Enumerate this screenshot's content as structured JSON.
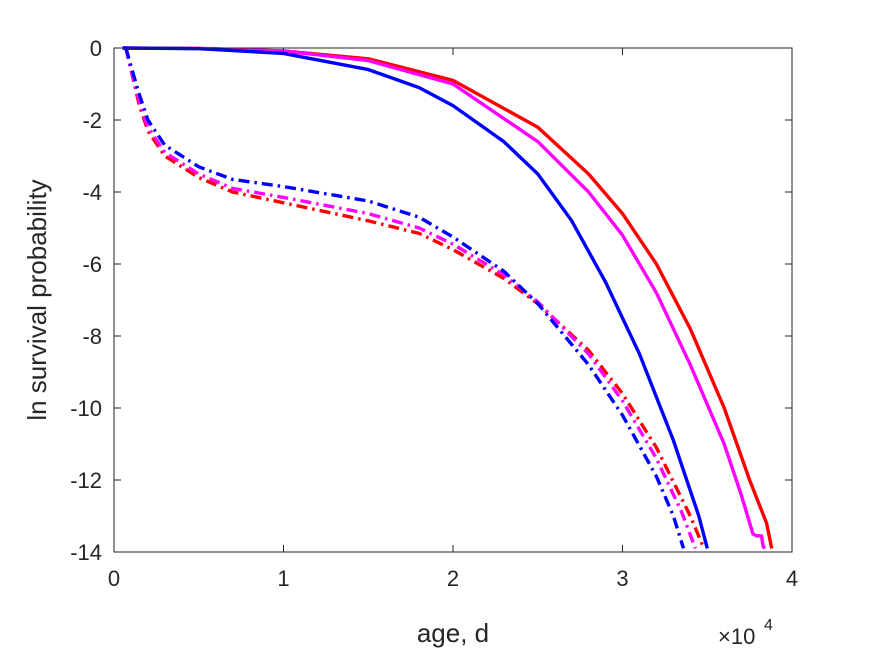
{
  "chart_data": {
    "type": "line",
    "title": "",
    "xlabel": "age, d",
    "ylabel": "ln survival probability",
    "x_exponent_label": {
      "base": "×10",
      "power": "4"
    },
    "xlim": [
      0,
      4
    ],
    "ylim": [
      -14,
      0
    ],
    "x_ticks": [
      "0",
      "1",
      "2",
      "3",
      "4"
    ],
    "y_ticks": [
      "0",
      "-2",
      "-4",
      "-6",
      "-8",
      "-10",
      "-12",
      "-14"
    ],
    "grid": false,
    "legend": "none",
    "series": [
      {
        "color": "#ff0000",
        "dash": "solid",
        "x": [
          0.05,
          0.5,
          1.0,
          1.5,
          2.0,
          2.5,
          2.8,
          3.0,
          3.2,
          3.4,
          3.6,
          3.75,
          3.85,
          3.88
        ],
        "y": [
          0,
          -0.01,
          -0.08,
          -0.3,
          -0.9,
          -2.2,
          -3.5,
          -4.6,
          -6.0,
          -7.8,
          -10.0,
          -12.0,
          -13.2,
          -13.9
        ]
      },
      {
        "color": "#ff00ff",
        "dash": "solid",
        "x": [
          0.05,
          0.5,
          1.0,
          1.5,
          2.0,
          2.5,
          2.8,
          3.0,
          3.2,
          3.4,
          3.6,
          3.7,
          3.77,
          3.79,
          3.82,
          3.83,
          3.84
        ],
        "y": [
          0,
          -0.01,
          -0.08,
          -0.35,
          -1.0,
          -2.6,
          -4.0,
          -5.2,
          -6.8,
          -8.8,
          -11.0,
          -12.4,
          -13.5,
          -13.55,
          -13.55,
          -13.85,
          -13.9
        ]
      },
      {
        "color": "#0000ff",
        "dash": "solid",
        "x": [
          0.05,
          0.5,
          1.0,
          1.5,
          1.8,
          2.0,
          2.3,
          2.5,
          2.7,
          2.9,
          3.1,
          3.3,
          3.45,
          3.5
        ],
        "y": [
          0,
          -0.02,
          -0.15,
          -0.6,
          -1.1,
          -1.6,
          -2.6,
          -3.5,
          -4.8,
          -6.5,
          -8.5,
          -10.9,
          -13.0,
          -13.9
        ]
      },
      {
        "color": "#ff0000",
        "dash": "dashdot",
        "x": [
          0.07,
          0.1,
          0.15,
          0.2,
          0.3,
          0.5,
          0.7,
          1.0,
          1.5,
          1.8,
          2.0,
          2.3,
          2.5,
          2.8,
          3.0,
          3.2,
          3.4,
          3.48
        ],
        "y": [
          0,
          -0.6,
          -1.6,
          -2.3,
          -3.0,
          -3.6,
          -4.0,
          -4.3,
          -4.8,
          -5.15,
          -5.6,
          -6.4,
          -7.1,
          -8.4,
          -9.6,
          -11.1,
          -13.0,
          -13.9
        ]
      },
      {
        "color": "#ff00ff",
        "dash": "dashdot",
        "x": [
          0.07,
          0.1,
          0.15,
          0.2,
          0.3,
          0.5,
          0.7,
          1.0,
          1.5,
          1.8,
          2.0,
          2.3,
          2.5,
          2.8,
          3.0,
          3.2,
          3.35,
          3.43
        ],
        "y": [
          0,
          -0.6,
          -1.5,
          -2.2,
          -2.9,
          -3.5,
          -3.9,
          -4.15,
          -4.6,
          -5.0,
          -5.45,
          -6.3,
          -7.05,
          -8.5,
          -9.8,
          -11.4,
          -12.9,
          -13.9
        ]
      },
      {
        "color": "#0000ff",
        "dash": "dashdot",
        "x": [
          0.07,
          0.1,
          0.15,
          0.2,
          0.3,
          0.5,
          0.7,
          1.0,
          1.5,
          1.8,
          2.0,
          2.3,
          2.5,
          2.8,
          3.0,
          3.2,
          3.3,
          3.36
        ],
        "y": [
          0,
          -0.5,
          -1.3,
          -2.0,
          -2.7,
          -3.3,
          -3.65,
          -3.85,
          -4.25,
          -4.7,
          -5.25,
          -6.2,
          -7.1,
          -8.8,
          -10.2,
          -11.9,
          -13.0,
          -13.9
        ]
      }
    ]
  }
}
